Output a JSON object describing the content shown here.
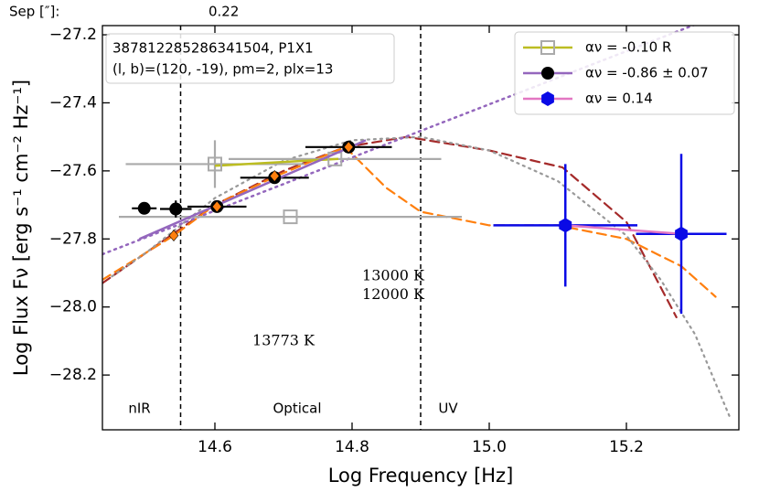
{
  "chart_data": {
    "type": "scatter",
    "header": {
      "label": "Sep [″]:",
      "value": "0.22"
    },
    "info_lines": [
      "387812285286341504, P1X1",
      "(l, b)=(120, -19), pm=2, plx=13"
    ],
    "x_label": "Log Frequency [Hz]",
    "y_label": "Log Flux Fν [erg s⁻¹ cm⁻² Hz⁻¹]",
    "xlim": [
      14.436,
      15.364
    ],
    "ylim": [
      -28.361,
      -27.173
    ],
    "xticks": [
      14.6,
      14.8,
      {
        "value": 15.0,
        "label": "15.0"
      },
      15.2
    ],
    "yticks": [
      {
        "value": -27.2,
        "label": "−27.2"
      },
      {
        "value": -27.4,
        "label": "−27.4"
      },
      {
        "value": -27.6,
        "label": "−27.6"
      },
      {
        "value": -27.8,
        "label": "−27.8"
      },
      {
        "value": -28.0,
        "label": "−28.0"
      },
      {
        "value": -28.2,
        "label": "−28.2"
      }
    ],
    "legend": "upper right",
    "regions": [
      {
        "label": "nIR",
        "x": 14.49
      },
      {
        "label": "Optical",
        "x": 14.72
      },
      {
        "label": "UV",
        "x": 14.94
      }
    ],
    "boundaries": [
      14.55,
      14.9
    ],
    "curves": [
      {
        "label": "13000 K",
        "color": "#a52a2a",
        "dash": "dashed",
        "label_pos": [
          14.86,
          -27.91
        ],
        "x": [
          14.436,
          14.5,
          14.55,
          14.6,
          14.7,
          14.79,
          14.88,
          15.0,
          15.107,
          15.2,
          15.273
        ],
        "y": [
          -27.93,
          -27.84,
          -27.77,
          -27.7,
          -27.6,
          -27.53,
          -27.5,
          -27.54,
          -27.59,
          -27.75,
          -28.03
        ]
      },
      {
        "label": "12000 K",
        "color": "#ff7f0e",
        "dash": "dashed",
        "label_pos": [
          14.86,
          -27.965
        ],
        "x": [
          14.436,
          14.54,
          14.6,
          14.69,
          14.79,
          14.85,
          14.9,
          15.0,
          15.1,
          15.2,
          15.28,
          15.33
        ],
        "y": [
          -27.92,
          -27.79,
          -27.7,
          -27.615,
          -27.53,
          -27.65,
          -27.72,
          -27.76,
          -27.76,
          -27.8,
          -27.88,
          -27.97
        ]
      },
      {
        "label": "13773 K",
        "color": "#999999",
        "dash": "dotted",
        "label_pos": [
          14.7,
          -28.1
        ],
        "x": [
          14.45,
          14.5,
          14.55,
          14.6,
          14.7,
          14.8,
          14.9,
          15.0,
          15.1,
          15.2,
          15.25,
          15.3,
          15.35
        ],
        "y": [
          -27.91,
          -27.84,
          -27.76,
          -27.68,
          -27.57,
          -27.51,
          -27.5,
          -27.54,
          -27.63,
          -27.79,
          -27.92,
          -28.08,
          -28.32
        ]
      }
    ],
    "series": [
      {
        "name": "αν = -0.10   R",
        "marker": "square",
        "color": "#aaaaaa",
        "fit_color": "#bcbd22",
        "fit": {
          "x": [
            14.6,
            14.78
          ],
          "y": [
            -27.585,
            -27.565
          ]
        },
        "x": [
          14.6,
          14.775,
          14.71
        ],
        "y": [
          -27.58,
          -27.565,
          -27.735
        ],
        "xerr": [
          0.13,
          0.155,
          0.25
        ],
        "yerr": [
          0.07,
          null,
          null
        ]
      },
      {
        "name": "αν = -0.86 ± 0.07",
        "marker": "circle",
        "color": "#000000",
        "fit_color": "#9467bd",
        "fit": {
          "x": [
            14.49,
            14.82
          ],
          "y": [
            -27.8,
            -27.51
          ]
        },
        "extension": {
          "x": [
            14.436,
            15.3
          ],
          "y": [
            -27.845,
            -27.17
          ]
        },
        "x": [
          14.497,
          14.543,
          14.603,
          14.687,
          14.795
        ],
        "y": [
          -27.71,
          -27.712,
          -27.705,
          -27.62,
          -27.53
        ],
        "xerr": [
          0.018,
          0.023,
          0.043,
          0.05,
          0.063
        ],
        "yerr": [
          null,
          0.025,
          null,
          null,
          null
        ]
      },
      {
        "name": "αν = 0.14",
        "marker": "hexagon",
        "color": "#0a0ae6",
        "fit_color": "#e377c2",
        "fit": {
          "x": [
            15.111,
            15.28
          ],
          "y": [
            -27.76,
            -27.785
          ]
        },
        "x": [
          15.111,
          15.28
        ],
        "y": [
          -27.76,
          -27.785
        ],
        "xerr": [
          0.105,
          0.066
        ],
        "yerr": [
          0.18,
          0.235
        ]
      }
    ],
    "overlay": {
      "marker": "diamond",
      "color": "#ff7f0e",
      "x": [
        14.54,
        14.603,
        14.687,
        14.795
      ],
      "y": [
        -27.79,
        -27.705,
        -27.615,
        -27.53
      ]
    }
  }
}
